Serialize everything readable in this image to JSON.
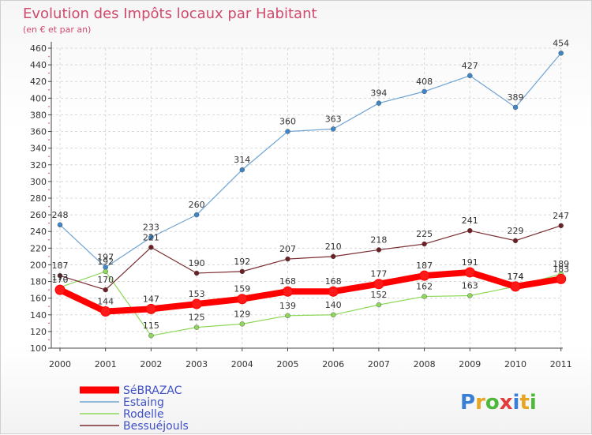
{
  "chart_data": {
    "type": "line",
    "title": "Evolution des Impôts locaux par Habitant",
    "subtitle": "(en € et par an)",
    "xlabel": "",
    "ylabel": "",
    "categories": [
      "2000",
      "2001",
      "2002",
      "2003",
      "2004",
      "2005",
      "2006",
      "2007",
      "2008",
      "2009",
      "2010",
      "2011"
    ],
    "ylim": [
      100,
      460
    ],
    "yticks": [
      100,
      120,
      140,
      160,
      180,
      200,
      220,
      240,
      260,
      280,
      300,
      320,
      340,
      360,
      380,
      400,
      420,
      440,
      460
    ],
    "grid": true,
    "legend_position": "bottom-left",
    "series": [
      {
        "name": "SéBRAZAC",
        "color": "#ff0000",
        "values": [
          170,
          144,
          147,
          153,
          159,
          168,
          168,
          177,
          187,
          191,
          174,
          183
        ]
      },
      {
        "name": "Estaing",
        "color": "#6fa3d4",
        "values": [
          248,
          197,
          233,
          260,
          314,
          360,
          363,
          394,
          408,
          427,
          389,
          454
        ]
      },
      {
        "name": "Rodelle",
        "color": "#8ed85a",
        "values": [
          173,
          192,
          115,
          125,
          129,
          139,
          140,
          152,
          162,
          163,
          174,
          189
        ]
      },
      {
        "name": "Bessuéjouls",
        "color": "#7a2c30",
        "values": [
          187,
          170,
          221,
          190,
          192,
          207,
          210,
          218,
          225,
          241,
          229,
          247
        ]
      }
    ]
  },
  "logo": {
    "text": "Proxiti",
    "letters": [
      "P",
      "r",
      "o",
      "x",
      "i",
      "t",
      "i"
    ]
  }
}
